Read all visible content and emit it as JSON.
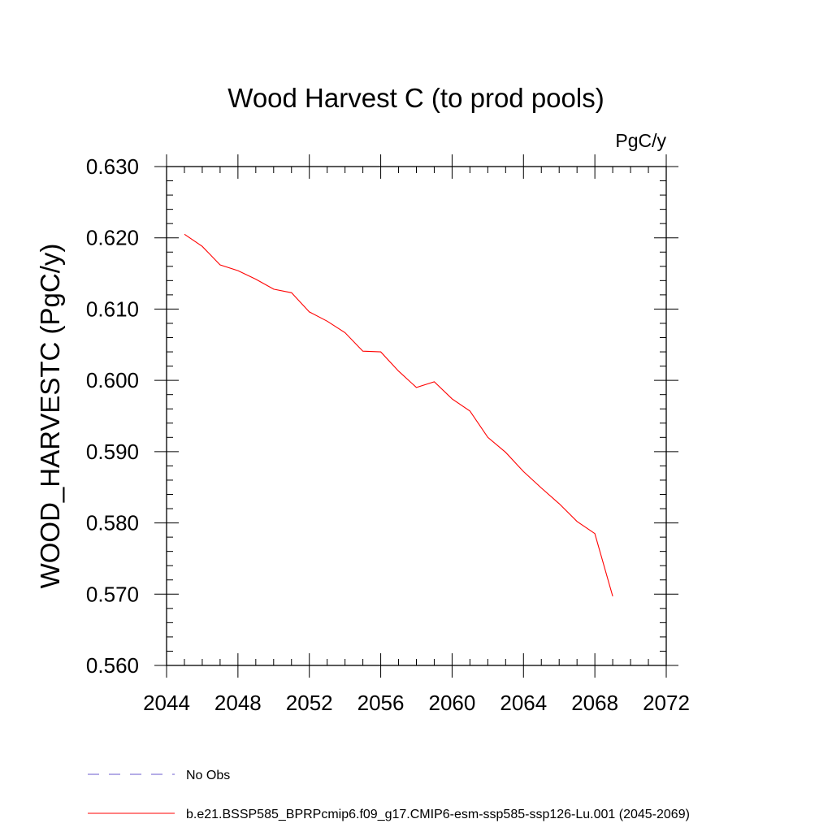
{
  "chart_data": {
    "type": "line",
    "title": "Wood Harvest C (to prod pools)",
    "units": "PgC/y",
    "ylabel": "WOOD_HARVESTC  (PgC/y)",
    "xlabel": "",
    "xlim": [
      2044,
      2072
    ],
    "ylim": [
      0.56,
      0.63
    ],
    "x_ticks": [
      2044,
      2048,
      2052,
      2056,
      2060,
      2064,
      2068,
      2072
    ],
    "x_tick_labels": [
      "2044",
      "2048",
      "2052",
      "2056",
      "2060",
      "2064",
      "2068",
      "2072"
    ],
    "y_ticks": [
      0.56,
      0.57,
      0.58,
      0.59,
      0.6,
      0.61,
      0.62,
      0.63
    ],
    "y_tick_labels": [
      "0.560",
      "0.570",
      "0.580",
      "0.590",
      "0.600",
      "0.610",
      "0.620",
      "0.630"
    ],
    "grid": false,
    "series": [
      {
        "name": "b.e21.BSSP585_BPRPcmip6.f09_g17.CMIP6-esm-ssp585-ssp126-Lu.001 (2045-2069)",
        "color": "#ff0000",
        "style": "solid",
        "x": [
          2045,
          2046,
          2047,
          2048,
          2049,
          2050,
          2051,
          2052,
          2053,
          2054,
          2055,
          2056,
          2057,
          2058,
          2059,
          2060,
          2061,
          2062,
          2063,
          2064,
          2065,
          2066,
          2067,
          2068,
          2069
        ],
        "y": [
          0.6205,
          0.6188,
          0.6162,
          0.6154,
          0.6142,
          0.6128,
          0.6123,
          0.6096,
          0.6083,
          0.6067,
          0.6041,
          0.604,
          0.6013,
          0.599,
          0.5998,
          0.5974,
          0.5957,
          0.592,
          0.5899,
          0.5872,
          0.5849,
          0.5827,
          0.5802,
          0.5785,
          0.5697
        ]
      }
    ],
    "legend": {
      "placement": "bottom-left",
      "entries": [
        {
          "label": "No Obs",
          "color": "#6a5acd",
          "style": "dashed"
        },
        {
          "label": "b.e21.BSSP585_BPRPcmip6.f09_g17.CMIP6-esm-ssp585-ssp126-Lu.001 (2045-2069)",
          "color": "#ff0000",
          "style": "solid"
        }
      ]
    }
  }
}
